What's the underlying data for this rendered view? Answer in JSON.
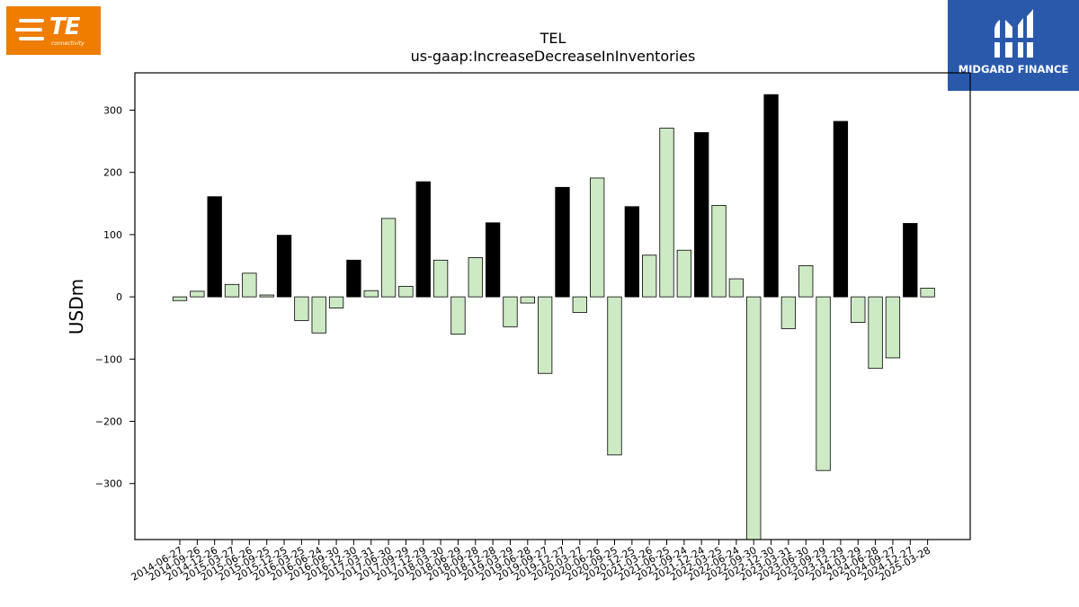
{
  "logos": {
    "left": {
      "text": "TE",
      "subtext": "connectivity",
      "color": "#ee7d00"
    },
    "right": {
      "text": "MIDGARD FINANCE",
      "color": "#2a59ac"
    }
  },
  "chart_data": {
    "type": "bar",
    "title": "TEL",
    "subtitle": "us-gaap:IncreaseDecreaseInInventories",
    "xlabel": "",
    "ylabel": "USDm",
    "ylim": [
      -390,
      360
    ],
    "yticks": [
      -300,
      -200,
      -100,
      0,
      100,
      200,
      300
    ],
    "grid": false,
    "colors": {
      "fiscal_year_end": "#000000",
      "other_quarter": "#cdeac5",
      "edge": "#000000"
    },
    "categories": [
      "2014-06-27",
      "2014-09-26",
      "2014-12-26",
      "2015-03-27",
      "2015-06-26",
      "2015-09-25",
      "2015-12-25",
      "2016-03-25",
      "2016-06-24",
      "2016-09-30",
      "2016-12-30",
      "2017-03-31",
      "2017-06-30",
      "2017-09-29",
      "2017-12-29",
      "2018-03-30",
      "2018-06-29",
      "2018-09-28",
      "2018-12-28",
      "2019-03-29",
      "2019-06-28",
      "2019-09-27",
      "2019-12-27",
      "2020-03-27",
      "2020-06-26",
      "2020-09-25",
      "2020-12-25",
      "2021-03-26",
      "2021-06-25",
      "2021-09-24",
      "2021-12-24",
      "2022-03-25",
      "2022-06-24",
      "2022-09-30",
      "2022-12-30",
      "2023-03-31",
      "2023-06-30",
      "2023-09-29",
      "2023-12-29",
      "2024-03-29",
      "2024-06-28",
      "2024-09-27",
      "2024-12-27",
      "2025-03-28"
    ],
    "values": [
      -6,
      9,
      161,
      20,
      38,
      3,
      99,
      -38,
      -58,
      -18,
      59,
      10,
      126,
      17,
      185,
      59,
      -60,
      63,
      119,
      -48,
      -10,
      -123,
      176,
      -25,
      191,
      -254,
      145,
      67,
      271,
      75,
      264,
      147,
      29,
      -390,
      325,
      -51,
      50,
      -279,
      282,
      -41,
      -115,
      -98,
      118,
      14
    ],
    "highlight": [
      false,
      false,
      true,
      false,
      false,
      false,
      true,
      false,
      false,
      false,
      true,
      false,
      false,
      false,
      true,
      false,
      false,
      false,
      true,
      false,
      false,
      false,
      true,
      false,
      false,
      false,
      true,
      false,
      false,
      false,
      true,
      false,
      false,
      false,
      true,
      false,
      false,
      false,
      true,
      false,
      false,
      false,
      true,
      false
    ]
  }
}
